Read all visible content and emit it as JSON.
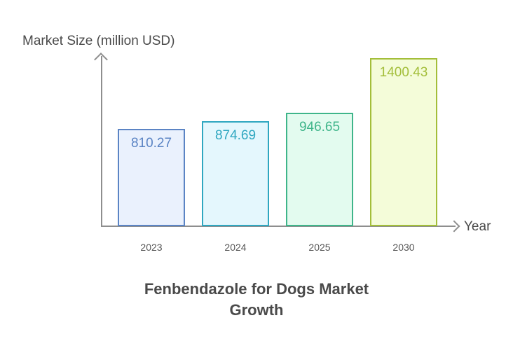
{
  "chart_data": {
    "type": "bar",
    "title": "Fenbendazole for Dogs Market Growth",
    "xlabel": "Year",
    "ylabel": "Market Size (million USD)",
    "categories": [
      "2023",
      "2024",
      "2025",
      "2030"
    ],
    "values": [
      810.27,
      874.69,
      946.65,
      1400.43
    ],
    "value_labels": [
      "810.27",
      "874.69",
      "946.65",
      "1400.43"
    ],
    "colors": {
      "borders": [
        "#5b84c4",
        "#2fa7c0",
        "#3fb58a",
        "#a3be3a"
      ],
      "fills": [
        "#eaf1fd",
        "#e4f7fd",
        "#e3fbef",
        "#f4fcd9"
      ],
      "labels": [
        "#5b84c4",
        "#2fa7c0",
        "#3fb58a",
        "#a3be3a"
      ]
    },
    "grid": false,
    "legend": "none"
  }
}
